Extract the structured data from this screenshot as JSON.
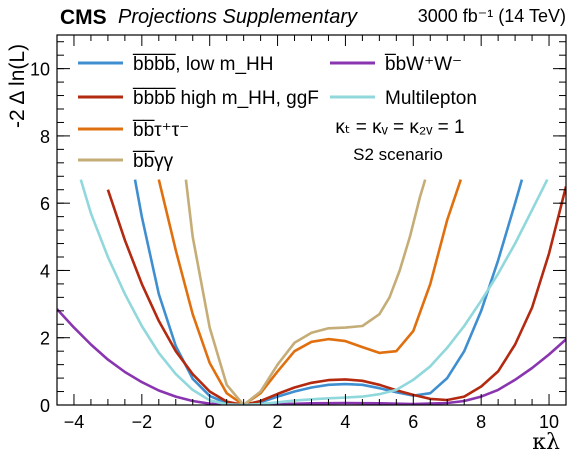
{
  "header": {
    "experiment": "CMS",
    "subtitle": "Projections Supplementary",
    "lumi": "3000 fb⁻¹ (14 TeV)"
  },
  "annotations": {
    "couplings": "κₜ = κᵥ = κ₂ᵥ = 1",
    "scenario": "S2 scenario"
  },
  "chart_data": {
    "type": "line",
    "xlabel": "κλ",
    "ylabel": "-2 Δ ln(L)",
    "xlim": [
      -4.5,
      10.5
    ],
    "ylim": [
      0,
      11
    ],
    "xticks": [
      -4,
      -2,
      0,
      2,
      4,
      6,
      8,
      10
    ],
    "yticks": [
      0,
      2,
      4,
      6,
      8,
      10
    ],
    "grid": false,
    "legend_position": "top",
    "series": [
      {
        "name": "b̅b̅b̅b̅, low m_HH",
        "color": "#3f8fd0",
        "x": [
          -2.2,
          -2.0,
          -1.5,
          -1.0,
          -0.5,
          0.0,
          0.5,
          1.0,
          1.5,
          2.0,
          2.5,
          3.0,
          3.5,
          4.0,
          4.5,
          5.0,
          5.5,
          6.0,
          6.5,
          7.0,
          7.5,
          8.0,
          8.5,
          9.0,
          9.2
        ],
        "y": [
          6.7,
          5.6,
          3.3,
          1.75,
          0.78,
          0.27,
          0.05,
          0.0,
          0.08,
          0.25,
          0.4,
          0.52,
          0.6,
          0.62,
          0.6,
          0.5,
          0.38,
          0.28,
          0.35,
          0.8,
          1.6,
          2.8,
          4.3,
          6.0,
          6.7
        ]
      },
      {
        "name": "b̅b̅b̅b̅ high m_HH, ggF",
        "color": "#b32a10",
        "x": [
          -3.0,
          -2.5,
          -2.0,
          -1.5,
          -1.0,
          -0.5,
          0.0,
          0.5,
          1.0,
          1.5,
          2.0,
          2.5,
          3.0,
          3.5,
          4.0,
          4.5,
          5.0,
          5.5,
          6.0,
          6.5,
          7.0,
          7.5,
          8.0,
          8.5,
          9.0,
          9.5,
          10.0,
          10.5
        ],
        "y": [
          6.4,
          4.9,
          3.6,
          2.5,
          1.6,
          0.92,
          0.4,
          0.1,
          0.0,
          0.12,
          0.33,
          0.52,
          0.66,
          0.74,
          0.76,
          0.72,
          0.6,
          0.44,
          0.3,
          0.18,
          0.15,
          0.25,
          0.55,
          1.0,
          1.8,
          2.9,
          4.5,
          6.5
        ]
      },
      {
        "name": "b̅b̅τ⁺τ⁻",
        "color": "#e0700f",
        "x": [
          -1.5,
          -1.0,
          -0.5,
          0.0,
          0.5,
          1.0,
          1.5,
          2.0,
          2.5,
          3.0,
          3.5,
          4.0,
          4.5,
          5.0,
          5.5,
          6.0,
          6.5,
          7.0,
          7.4
        ],
        "y": [
          6.7,
          4.6,
          2.7,
          1.25,
          0.35,
          0.0,
          0.35,
          1.0,
          1.6,
          1.88,
          1.96,
          1.9,
          1.72,
          1.55,
          1.6,
          2.2,
          3.6,
          5.5,
          6.7
        ]
      },
      {
        "name": "b̅b̅γγ",
        "color": "#c5ad78",
        "x": [
          -0.7,
          -0.5,
          0.0,
          0.5,
          1.0,
          1.5,
          2.0,
          2.5,
          3.0,
          3.5,
          4.0,
          4.5,
          5.0,
          5.3,
          5.6,
          5.9,
          6.2,
          6.35
        ],
        "y": [
          6.7,
          5.0,
          2.3,
          0.6,
          0.0,
          0.4,
          1.2,
          1.85,
          2.15,
          2.28,
          2.3,
          2.35,
          2.7,
          3.2,
          4.0,
          5.0,
          6.2,
          6.7
        ]
      },
      {
        "name": "b̅bW⁺W⁻",
        "color": "#8a35b0",
        "x": [
          -4.5,
          -4.0,
          -3.5,
          -3.0,
          -2.5,
          -2.0,
          -1.5,
          -1.0,
          -0.5,
          0.0,
          0.5,
          1.0,
          1.5,
          2.0,
          3.0,
          4.0,
          5.0,
          6.0,
          7.0,
          7.5,
          8.0,
          8.5,
          9.0,
          9.5,
          10.0,
          10.5
        ],
        "y": [
          2.85,
          2.3,
          1.8,
          1.35,
          0.98,
          0.68,
          0.43,
          0.25,
          0.12,
          0.04,
          0.01,
          0.0,
          0.01,
          0.02,
          0.05,
          0.06,
          0.05,
          0.03,
          0.06,
          0.12,
          0.25,
          0.45,
          0.75,
          1.1,
          1.5,
          1.95
        ]
      },
      {
        "name": "Multilepton",
        "color": "#90d8dc",
        "x": [
          -3.8,
          -3.5,
          -3.0,
          -2.5,
          -2.0,
          -1.5,
          -1.0,
          -0.5,
          0.0,
          0.5,
          1.0,
          1.5,
          2.0,
          2.5,
          3.0,
          3.5,
          4.0,
          4.5,
          5.0,
          5.5,
          6.0,
          6.5,
          7.0,
          7.5,
          8.0,
          8.5,
          9.0,
          9.5,
          9.95
        ],
        "y": [
          6.7,
          5.7,
          4.4,
          3.3,
          2.35,
          1.55,
          0.92,
          0.45,
          0.14,
          0.02,
          0.0,
          0.03,
          0.08,
          0.13,
          0.17,
          0.2,
          0.22,
          0.25,
          0.32,
          0.45,
          0.75,
          1.15,
          1.7,
          2.35,
          3.1,
          3.9,
          4.8,
          5.8,
          6.7
        ]
      }
    ]
  }
}
